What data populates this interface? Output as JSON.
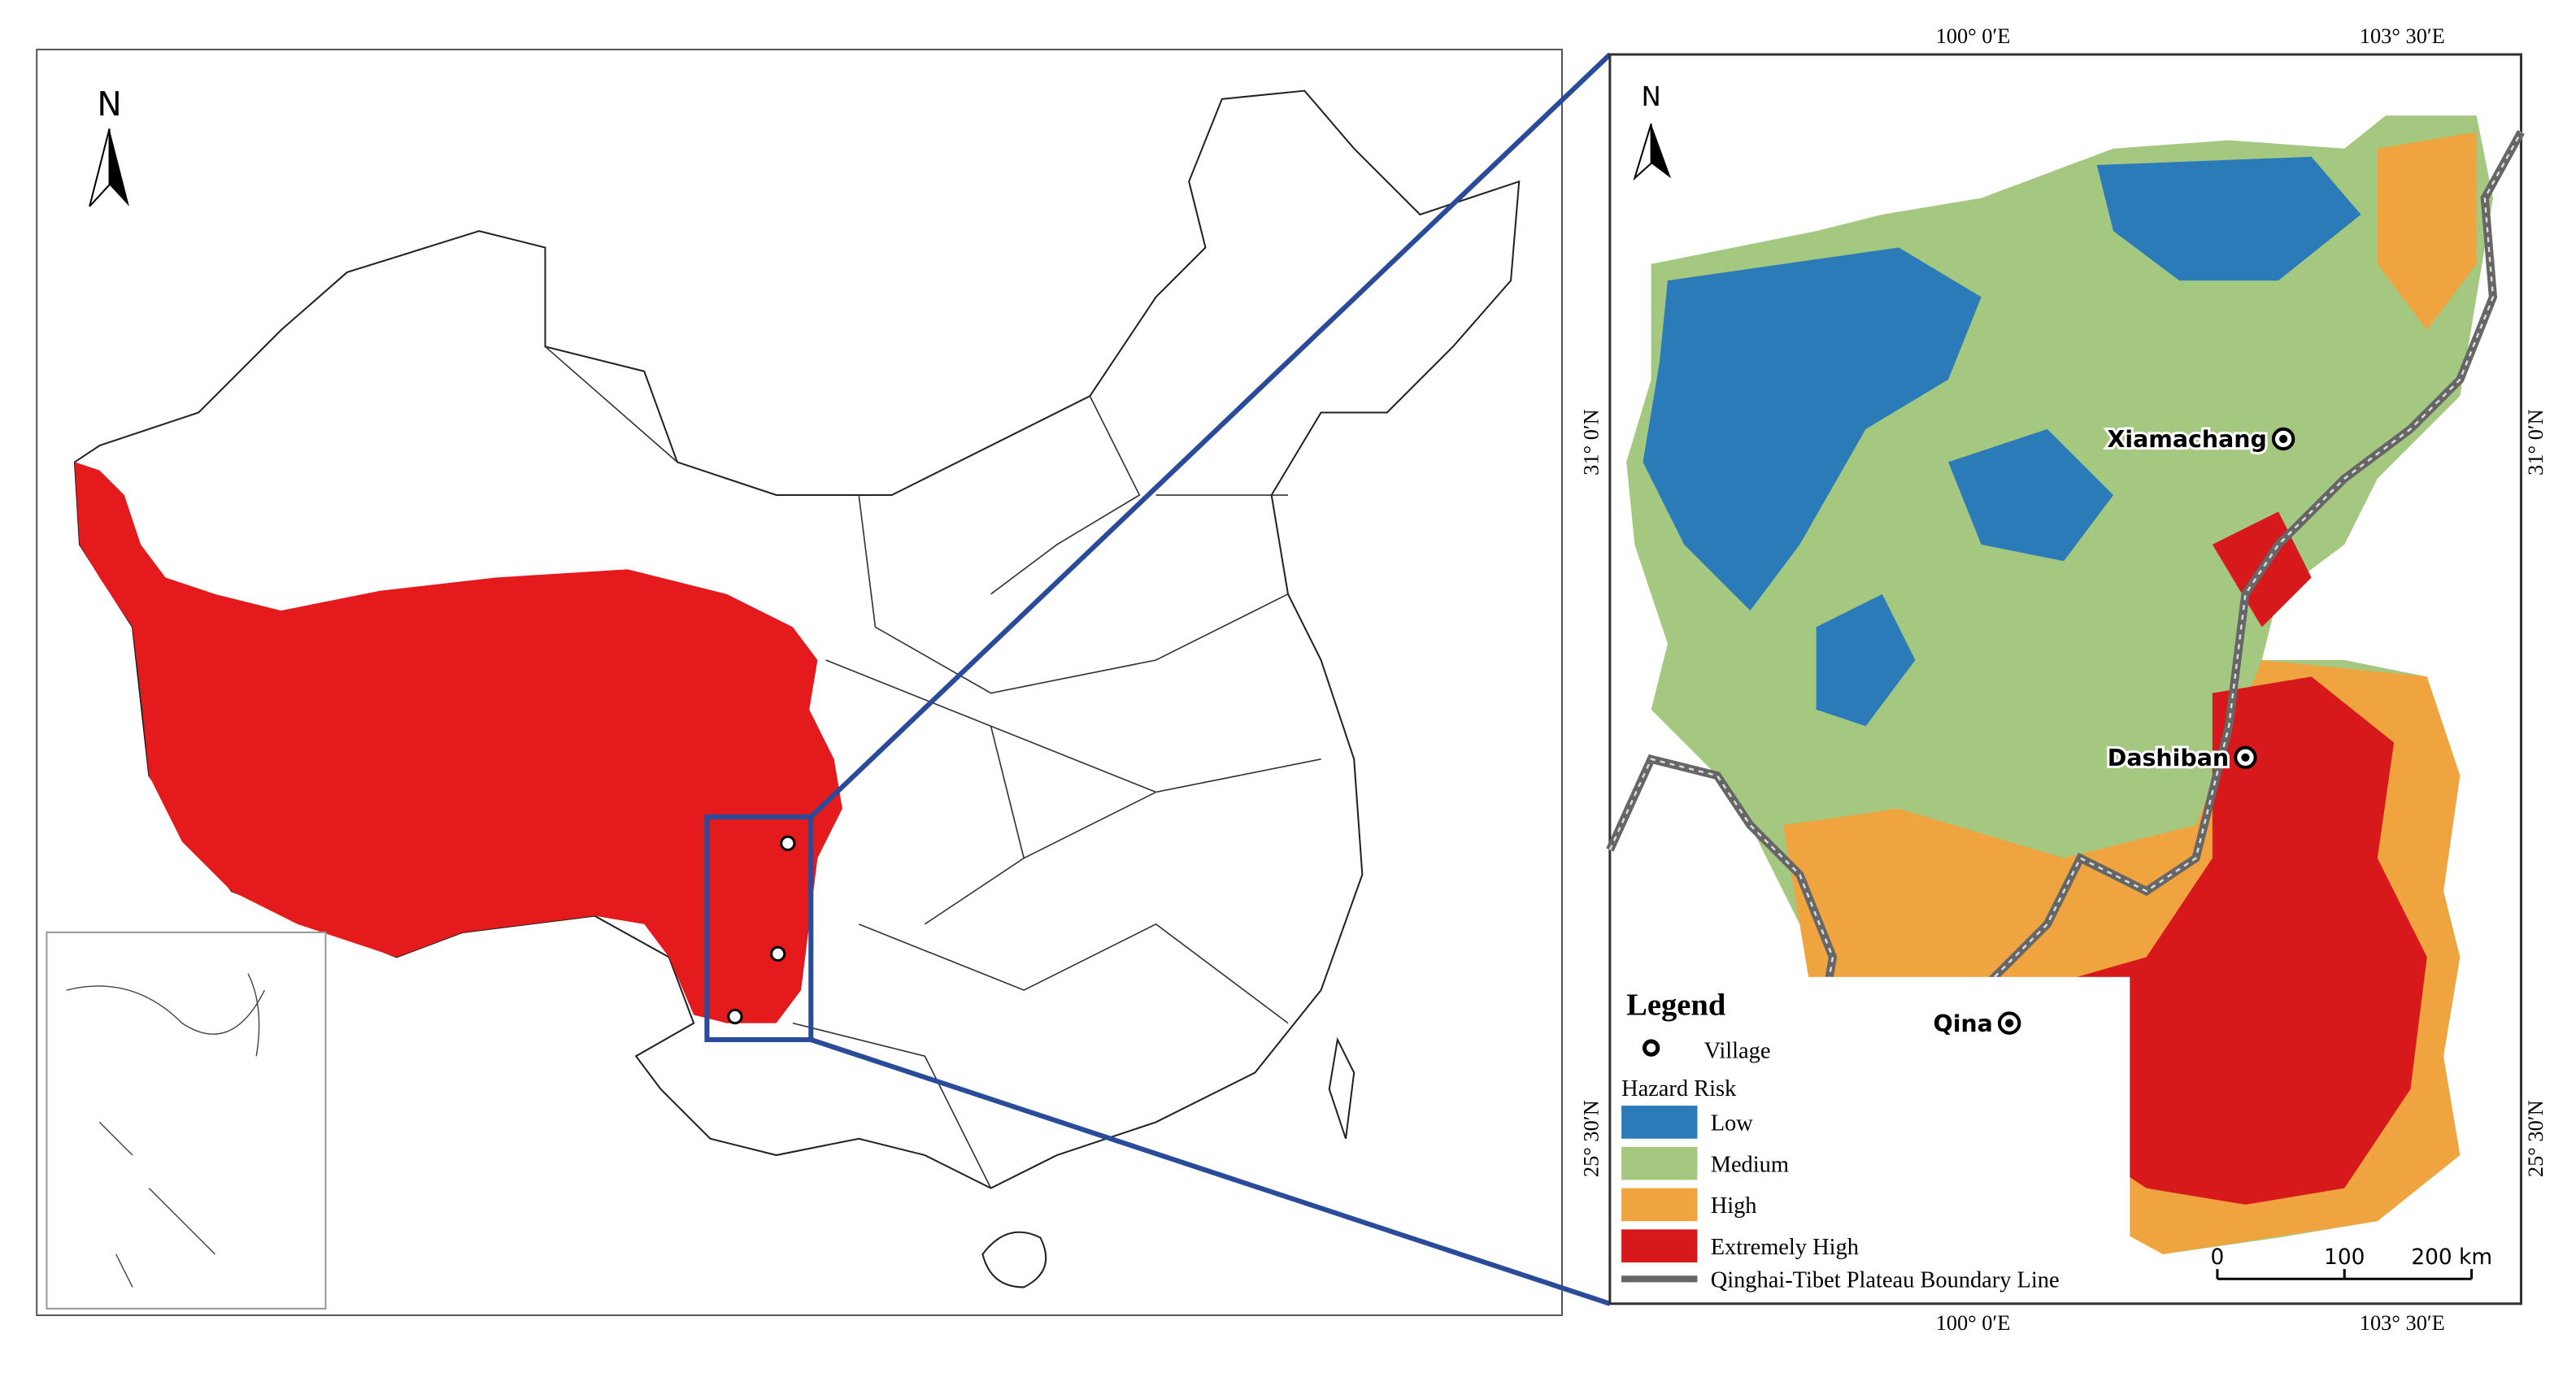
{
  "overview_map": {
    "north": "N"
  },
  "detail_map": {
    "north": "N",
    "top_labels": [
      "100° 0′E",
      "103° 30′E"
    ],
    "bottom_labels": [
      "100° 0′E",
      "103° 30′E"
    ],
    "left_labels": [
      "31° 0′N",
      "25° 30′N"
    ],
    "right_labels": [
      "31° 0′N",
      "25° 30′N"
    ],
    "villages": [
      "Xiamachang",
      "Dashiban",
      "Qina"
    ],
    "scale": {
      "ticks": [
        0,
        100,
        {
          "value": 200,
          "label": "200 km"
        }
      ]
    }
  },
  "legend": {
    "title": "Legend",
    "village": "Village",
    "risk_title": "Hazard Risk",
    "classes": [
      {
        "name": "Low",
        "color": "#2b7bb9"
      },
      {
        "name": "Medium",
        "color": "#a5c880"
      },
      {
        "name": "High",
        "color": "#f0a440"
      },
      {
        "name": "Extremely High",
        "color": "#d7191c"
      }
    ],
    "boundary": "Qinghai-Tibet Plateau Boundary Line"
  }
}
